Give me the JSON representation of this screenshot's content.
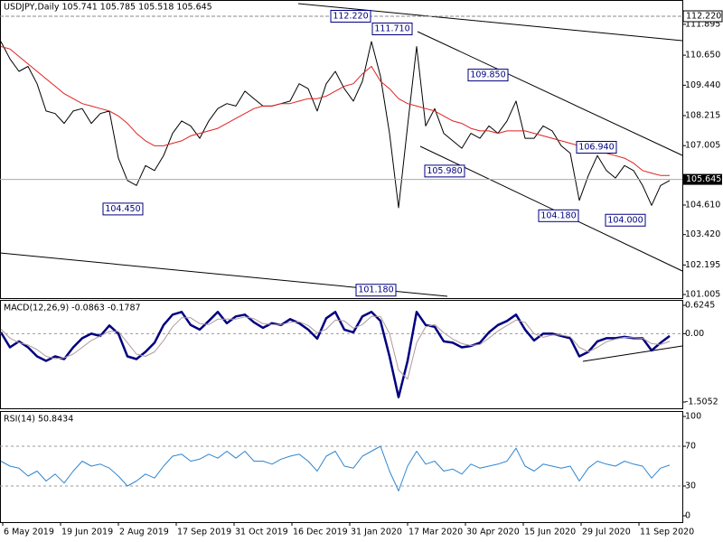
{
  "chart_data": [
    {
      "type": "line",
      "title": "USDJPY,Daily  105.741 105.785 105.518 105.645",
      "x": [
        0,
        5,
        10,
        15,
        20,
        25,
        30,
        35,
        40,
        45,
        50,
        55,
        60,
        65,
        70,
        75,
        80,
        85,
        90,
        95,
        100,
        105,
        110,
        115,
        120,
        125,
        130,
        135,
        140,
        145,
        150,
        155,
        160,
        165,
        170,
        175,
        180,
        185,
        190,
        195,
        200,
        205,
        210,
        215,
        220,
        225,
        230,
        235,
        240,
        245,
        250,
        255,
        260,
        265,
        270,
        275,
        280,
        285,
        290,
        295,
        300,
        305,
        310,
        315,
        320,
        325,
        330,
        335,
        340,
        345,
        350,
        355,
        360,
        365,
        370
      ],
      "series": [
        {
          "color": "#000000",
          "values": [
            111.2,
            110.5,
            110.0,
            110.2,
            109.5,
            108.4,
            108.3,
            107.9,
            108.4,
            108.5,
            107.9,
            108.3,
            108.4,
            106.5,
            105.6,
            105.4,
            106.2,
            106.0,
            106.6,
            107.5,
            108.0,
            107.8,
            107.3,
            108.0,
            108.5,
            108.7,
            108.6,
            109.2,
            108.9,
            108.6,
            108.6,
            108.7,
            108.8,
            109.5,
            109.3,
            108.4,
            109.5,
            110.0,
            109.3,
            108.8,
            109.6,
            111.2,
            109.8,
            107.5,
            104.5,
            107.8,
            111.0,
            107.8,
            108.5,
            107.5,
            107.2,
            106.9,
            107.5,
            107.3,
            107.8,
            107.5,
            108.0,
            108.8,
            107.3,
            107.3,
            107.8,
            107.6,
            107.0,
            106.7,
            104.8,
            105.8,
            106.6,
            106.0,
            105.7,
            106.2,
            106.0,
            105.4,
            104.6,
            105.4,
            105.6
          ]
        },
        {
          "color": "#e02020",
          "values": [
            111.0,
            110.9,
            110.6,
            110.3,
            110.0,
            109.7,
            109.4,
            109.1,
            108.9,
            108.7,
            108.6,
            108.5,
            108.4,
            108.2,
            107.9,
            107.5,
            107.2,
            107.0,
            107.0,
            107.1,
            107.2,
            107.4,
            107.5,
            107.6,
            107.7,
            107.9,
            108.1,
            108.3,
            108.5,
            108.6,
            108.6,
            108.7,
            108.7,
            108.8,
            108.9,
            108.9,
            109.0,
            109.2,
            109.4,
            109.5,
            109.9,
            110.2,
            109.6,
            109.3,
            108.9,
            108.7,
            108.6,
            108.5,
            108.4,
            108.2,
            108.0,
            107.9,
            107.7,
            107.6,
            107.6,
            107.5,
            107.6,
            107.6,
            107.6,
            107.5,
            107.4,
            107.3,
            107.2,
            107.1,
            107.0,
            106.9,
            106.8,
            106.7,
            106.6,
            106.5,
            106.3,
            106.0,
            105.9,
            105.8,
            105.8
          ]
        }
      ],
      "xlim": [
        -0.5,
        377
      ],
      "ylim": [
        100.86,
        112.875
      ],
      "yticks": [
        {
          "value": 111.895,
          "label": "111.895"
        },
        {
          "value": 110.65,
          "label": "110.650"
        },
        {
          "value": 109.44,
          "label": "109.440"
        },
        {
          "value": 108.215,
          "label": "108.215"
        },
        {
          "value": 107.005,
          "label": "107.005"
        },
        {
          "value": 104.61,
          "label": "104.610"
        },
        {
          "value": 103.42,
          "label": "103.420"
        },
        {
          "value": 102.195,
          "label": "102.195"
        },
        {
          "value": 101.005,
          "label": "101.005"
        }
      ],
      "annotations": [
        {
          "x": 206,
          "value": 112.22,
          "label": "112.220"
        },
        {
          "x": 229,
          "value": 111.71,
          "label": "111.710"
        },
        {
          "x": 282,
          "value": 109.85,
          "label": "109.850"
        },
        {
          "x": 258,
          "value": 105.98,
          "label": "105.980"
        },
        {
          "x": 80,
          "value": 104.45,
          "label": "104.450"
        },
        {
          "x": 342,
          "value": 106.94,
          "label": "106.940"
        },
        {
          "x": 321,
          "value": 104.18,
          "label": "104.180"
        },
        {
          "x": 358,
          "value": 104.0,
          "label": "104.000"
        },
        {
          "x": 220,
          "value": 101.18,
          "label": "101.180"
        }
      ],
      "levels": [
        {
          "value": 112.22,
          "label": "112.220"
        }
      ],
      "current": {
        "value": 105.645,
        "label": "105.645"
      }
    },
    {
      "type": "line",
      "title": "MACD(12,26,9) -0.0863 -0.1787",
      "x": [
        0,
        5,
        10,
        15,
        20,
        25,
        30,
        35,
        40,
        45,
        50,
        55,
        60,
        65,
        70,
        75,
        80,
        85,
        90,
        95,
        100,
        105,
        110,
        115,
        120,
        125,
        130,
        135,
        140,
        145,
        150,
        155,
        160,
        165,
        170,
        175,
        180,
        185,
        190,
        195,
        200,
        205,
        210,
        215,
        220,
        225,
        230,
        235,
        240,
        245,
        250,
        255,
        260,
        265,
        270,
        275,
        280,
        285,
        290,
        295,
        300,
        305,
        310,
        315,
        320,
        325,
        330,
        335,
        340,
        345,
        350,
        355,
        360,
        365,
        370
      ],
      "series": [
        {
          "color": "#000080",
          "width": 2.5,
          "values": [
            0.03,
            -0.3,
            -0.17,
            -0.3,
            -0.5,
            -0.6,
            -0.5,
            -0.56,
            -0.3,
            -0.1,
            0,
            -0.05,
            0.18,
            0,
            -0.5,
            -0.56,
            -0.4,
            -0.2,
            0.19,
            0.42,
            0.48,
            0.19,
            0.09,
            0.28,
            0.48,
            0.23,
            0.38,
            0.42,
            0.25,
            0.13,
            0.23,
            0.19,
            0.32,
            0.23,
            0.09,
            -0.11,
            0.34,
            0.48,
            0.09,
            0.03,
            0.38,
            0.48,
            0.28,
            -0.5,
            -1.4,
            -0.6,
            0.48,
            0.19,
            0.15,
            -0.17,
            -0.2,
            -0.3,
            -0.27,
            -0.2,
            0.03,
            0.19,
            0.28,
            0.42,
            0.09,
            -0.15,
            0,
            0,
            -0.05,
            -0.1,
            -0.5,
            -0.4,
            -0.17,
            -0.1,
            -0.1,
            -0.07,
            -0.1,
            -0.1,
            -0.37,
            -0.2,
            -0.05
          ]
        },
        {
          "color": "#b09a9a",
          "width": 1,
          "values": [
            0.1,
            -0.1,
            -0.2,
            -0.25,
            -0.35,
            -0.5,
            -0.55,
            -0.53,
            -0.45,
            -0.3,
            -0.15,
            -0.05,
            0.05,
            0.05,
            -0.2,
            -0.45,
            -0.5,
            -0.4,
            -0.15,
            0.15,
            0.35,
            0.35,
            0.22,
            0.2,
            0.32,
            0.32,
            0.32,
            0.37,
            0.33,
            0.22,
            0.2,
            0.2,
            0.25,
            0.26,
            0.18,
            0.02,
            0.1,
            0.3,
            0.28,
            0.12,
            0.2,
            0.38,
            0.38,
            0.0,
            -0.8,
            -1.0,
            -0.2,
            0.15,
            0.2,
            0.02,
            -0.12,
            -0.22,
            -0.26,
            -0.24,
            -0.1,
            0.06,
            0.18,
            0.3,
            0.25,
            0.0,
            -0.08,
            -0.03,
            -0.03,
            -0.07,
            -0.3,
            -0.4,
            -0.3,
            -0.18,
            -0.12,
            -0.08,
            -0.09,
            -0.1,
            -0.22,
            -0.24,
            -0.17
          ]
        }
      ],
      "xlim": [
        -0.5,
        377
      ],
      "ylim": [
        -1.644,
        0.744
      ],
      "yticks": [
        {
          "value": 0.6245,
          "label": "0.6245"
        },
        {
          "value": 0,
          "label": "0.00"
        },
        {
          "value": -1.5052,
          "label": "-1.5052"
        }
      ],
      "levels": [
        0
      ]
    },
    {
      "type": "line",
      "title": "RSI(14) 50.8434",
      "x": [
        0,
        5,
        10,
        15,
        20,
        25,
        30,
        35,
        40,
        45,
        50,
        55,
        60,
        65,
        70,
        75,
        80,
        85,
        90,
        95,
        100,
        105,
        110,
        115,
        120,
        125,
        130,
        135,
        140,
        145,
        150,
        155,
        160,
        165,
        170,
        175,
        180,
        185,
        190,
        195,
        200,
        205,
        210,
        215,
        220,
        225,
        230,
        235,
        240,
        245,
        250,
        255,
        260,
        265,
        270,
        275,
        280,
        285,
        290,
        295,
        300,
        305,
        310,
        315,
        320,
        325,
        330,
        335,
        340,
        345,
        350,
        355,
        360,
        365,
        370
      ],
      "series": [
        {
          "color": "#2f86d0",
          "width": 1,
          "values": [
            55,
            50,
            48,
            40,
            45,
            35,
            42,
            33,
            45,
            55,
            50,
            52,
            48,
            40,
            30,
            35,
            42,
            38,
            50,
            60,
            62,
            55,
            57,
            62,
            58,
            65,
            58,
            65,
            55,
            55,
            52,
            57,
            60,
            62,
            55,
            45,
            60,
            65,
            50,
            48,
            60,
            65,
            70,
            45,
            25,
            50,
            65,
            52,
            55,
            45,
            47,
            42,
            52,
            48,
            50,
            52,
            55,
            68,
            50,
            45,
            52,
            50,
            48,
            50,
            35,
            48,
            55,
            52,
            50,
            55,
            52,
            50,
            38,
            48,
            51
          ]
        }
      ],
      "xlim": [
        -0.5,
        377
      ],
      "ylim": [
        -6.4,
        105.5
      ],
      "yticks": [
        100,
        70,
        30,
        0
      ],
      "levels": [
        70,
        30
      ],
      "xticks": [
        {
          "value": 1,
          "label": "6 May 2019"
        },
        {
          "value": 33,
          "label": "19 Jun 2019"
        },
        {
          "value": 65,
          "label": "2 Aug 2019"
        },
        {
          "value": 97,
          "label": "17 Sep 2019"
        },
        {
          "value": 129,
          "label": "31 Oct 2019"
        },
        {
          "value": 161,
          "label": "16 Dec 2019"
        },
        {
          "value": 193,
          "label": "31 Jan 2020"
        },
        {
          "value": 225,
          "label": "17 Mar 2020"
        },
        {
          "value": 257,
          "label": "30 Apr 2020"
        },
        {
          "value": 289,
          "label": "15 Jun 2020"
        },
        {
          "value": 321,
          "label": "29 Jul 2020"
        },
        {
          "value": 353,
          "label": "11 Sep 2020"
        }
      ]
    }
  ]
}
